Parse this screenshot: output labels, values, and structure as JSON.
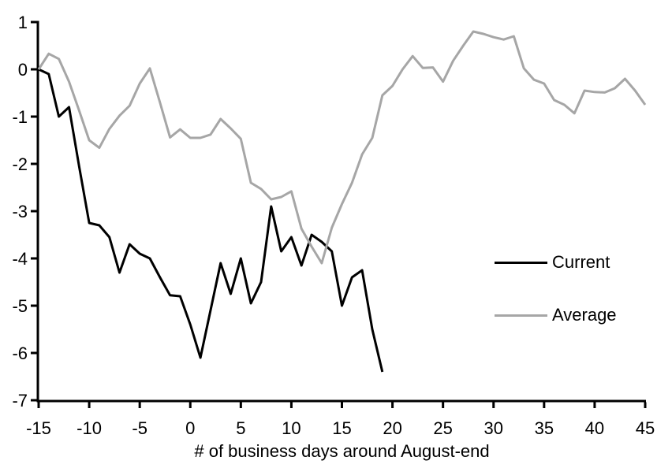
{
  "chart_data": {
    "type": "line",
    "title": "",
    "xlabel": "# of business days around August-end",
    "ylabel": "",
    "xlim": [
      -15,
      45
    ],
    "ylim": [
      -7,
      1
    ],
    "x_ticks": [
      -15,
      -10,
      -5,
      0,
      5,
      10,
      15,
      20,
      25,
      30,
      35,
      40,
      45
    ],
    "y_ticks": [
      1,
      0,
      -1,
      -2,
      -3,
      -4,
      -5,
      -6,
      -7
    ],
    "grid": false,
    "legend_position": "middle-right",
    "series": [
      {
        "name": "Current",
        "color": "#000000",
        "line_width": 3,
        "x": [
          -15,
          -14,
          -13,
          -12,
          -11,
          -10,
          -9,
          -8,
          -7,
          -6,
          -5,
          -4,
          -3,
          -2,
          -1,
          0,
          1,
          2,
          3,
          4,
          5,
          6,
          7,
          8,
          9,
          10,
          11,
          12,
          13,
          14,
          15,
          16,
          17,
          18,
          19
        ],
        "values": [
          0,
          -0.1,
          -1.0,
          -0.8,
          -2.05,
          -3.25,
          -3.3,
          -3.55,
          -4.3,
          -3.7,
          -3.9,
          -4.0,
          -4.4,
          -4.78,
          -4.8,
          -5.4,
          -6.1,
          -5.1,
          -4.1,
          -4.75,
          -4.0,
          -4.95,
          -4.5,
          -2.9,
          -3.85,
          -3.55,
          -4.15,
          -3.5,
          -3.65,
          -3.85,
          -5.0,
          -4.4,
          -4.25,
          -5.5,
          -6.4
        ]
      },
      {
        "name": "Average",
        "color": "#a6a6a6",
        "line_width": 3,
        "x": [
          -15,
          -14,
          -13,
          -12,
          -11,
          -10,
          -9,
          -8,
          -7,
          -6,
          -5,
          -4,
          -3,
          -2,
          -1,
          0,
          1,
          2,
          3,
          4,
          5,
          6,
          7,
          8,
          9,
          10,
          11,
          12,
          13,
          14,
          15,
          16,
          17,
          18,
          19,
          20,
          21,
          22,
          23,
          24,
          25,
          26,
          27,
          28,
          29,
          30,
          31,
          32,
          33,
          34,
          35,
          36,
          37,
          38,
          39,
          40,
          41,
          42,
          43,
          44,
          45
        ],
        "values": [
          0,
          0.33,
          0.22,
          -0.26,
          -0.87,
          -1.5,
          -1.66,
          -1.26,
          -0.98,
          -0.77,
          -0.3,
          0.02,
          -0.7,
          -1.44,
          -1.27,
          -1.45,
          -1.45,
          -1.38,
          -1.05,
          -1.25,
          -1.47,
          -2.4,
          -2.53,
          -2.75,
          -2.7,
          -2.58,
          -3.37,
          -3.75,
          -4.1,
          -3.35,
          -2.85,
          -2.4,
          -1.8,
          -1.45,
          -0.55,
          -0.35,
          0.0,
          0.28,
          0.03,
          0.04,
          -0.26,
          0.18,
          0.5,
          0.8,
          0.75,
          0.68,
          0.63,
          0.7,
          0.02,
          -0.22,
          -0.3,
          -0.65,
          -0.75,
          -0.93,
          -0.45,
          -0.48,
          -0.49,
          -0.4,
          -0.2,
          -0.45,
          -0.75
        ]
      }
    ]
  }
}
